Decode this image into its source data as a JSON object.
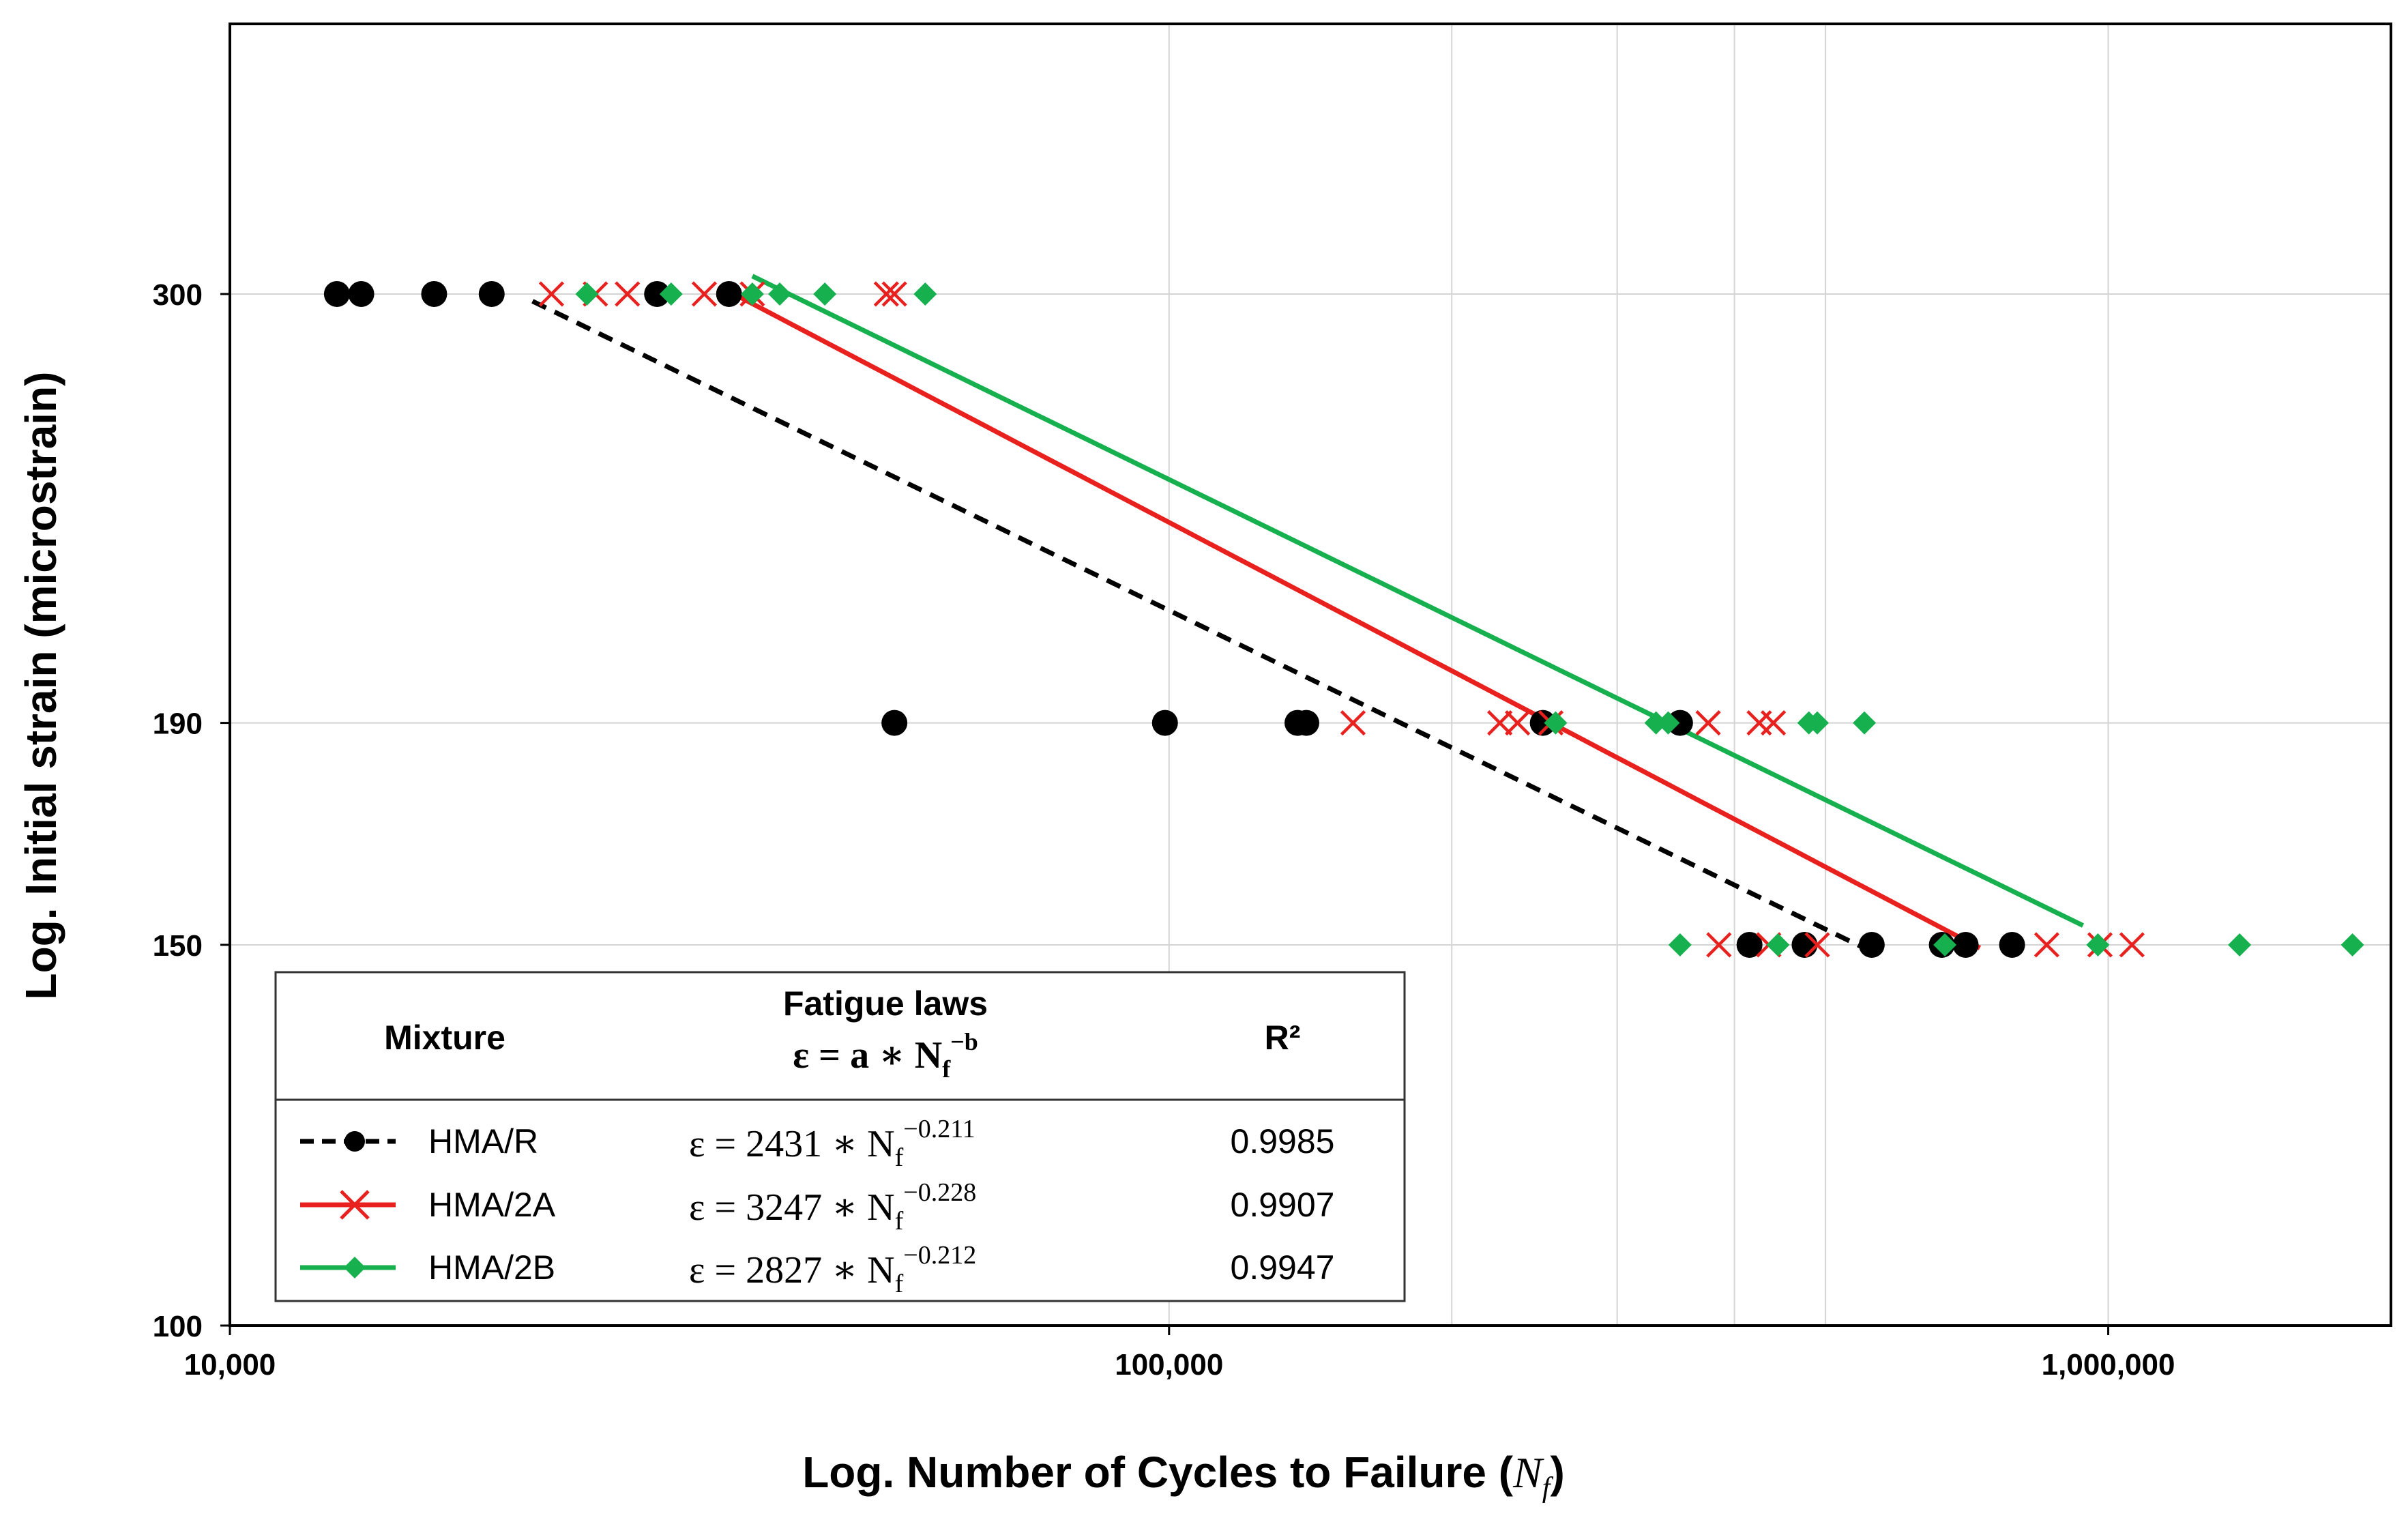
{
  "colors": {
    "hma_r": "#000000",
    "hma_2a": "#e8211e",
    "hma_2b": "#16b04e",
    "grid": "#d4d4d4",
    "axis": "#000000"
  },
  "chart_data": {
    "type": "scatter",
    "xscale": "log",
    "yscale": "log",
    "xlabel_text": "Log.  Number of Cycles to Failure (",
    "xlabel_symbol": "N",
    "xlabel_sub": "f",
    "xlabel_close": ")",
    "ylabel": "Log.  Initial strain (microstrain)",
    "xlim": [
      10000,
      2000000
    ],
    "ylim": [
      100,
      400
    ],
    "xticks": [
      10000,
      100000,
      1000000
    ],
    "xtick_labels": [
      "10,000",
      "100,000",
      "1,000,000"
    ],
    "yticks": [
      100,
      150,
      190,
      300
    ],
    "ytick_labels": [
      "100",
      "150",
      "190",
      "300"
    ],
    "x_minor_gridlines": [
      200000,
      300000,
      400000,
      500000,
      2000000
    ],
    "series": [
      {
        "name": "HMA/R",
        "marker": "circle",
        "line_style": "dashed",
        "fit": {
          "a": 2431,
          "b": 0.211,
          "r2": "0.9985",
          "x_range": [
            21000,
            560000
          ]
        },
        "points": [
          [
            13000,
            300
          ],
          [
            13800,
            300
          ],
          [
            16500,
            300
          ],
          [
            19000,
            300
          ],
          [
            28500,
            300
          ],
          [
            34000,
            300
          ],
          [
            51000,
            190
          ],
          [
            99000,
            190
          ],
          [
            137000,
            190
          ],
          [
            140000,
            190
          ],
          [
            250000,
            190
          ],
          [
            350000,
            190
          ],
          [
            415000,
            150
          ],
          [
            475000,
            150
          ],
          [
            560000,
            150
          ],
          [
            665000,
            150
          ],
          [
            705000,
            150
          ],
          [
            790000,
            150
          ]
        ]
      },
      {
        "name": "HMA/2A",
        "marker": "x",
        "line_style": "solid",
        "fit": {
          "a": 3247,
          "b": 0.228,
          "r2": "0.9907",
          "x_range": [
            35000,
            730000
          ]
        },
        "points": [
          [
            22000,
            300
          ],
          [
            24500,
            300
          ],
          [
            26500,
            300
          ],
          [
            32000,
            300
          ],
          [
            36000,
            300
          ],
          [
            50000,
            300
          ],
          [
            51000,
            300
          ],
          [
            157000,
            190
          ],
          [
            225000,
            190
          ],
          [
            235000,
            190
          ],
          [
            255000,
            190
          ],
          [
            375000,
            190
          ],
          [
            425000,
            190
          ],
          [
            440000,
            190
          ],
          [
            385000,
            150
          ],
          [
            435000,
            150
          ],
          [
            490000,
            150
          ],
          [
            860000,
            150
          ],
          [
            980000,
            150
          ],
          [
            1060000,
            150
          ]
        ]
      },
      {
        "name": "HMA/2B",
        "marker": "diamond",
        "line_style": "solid",
        "fit": {
          "a": 2827,
          "b": 0.212,
          "r2": "0.9947",
          "x_range": [
            36000,
            940000
          ]
        },
        "points": [
          [
            24000,
            300
          ],
          [
            29500,
            300
          ],
          [
            36000,
            300
          ],
          [
            38500,
            300
          ],
          [
            43000,
            300
          ],
          [
            55000,
            300
          ],
          [
            258000,
            190
          ],
          [
            330000,
            190
          ],
          [
            340000,
            190
          ],
          [
            480000,
            190
          ],
          [
            490000,
            190
          ],
          [
            550000,
            190
          ],
          [
            350000,
            150
          ],
          [
            445000,
            150
          ],
          [
            670000,
            150
          ],
          [
            975000,
            150
          ],
          [
            1380000,
            150
          ],
          [
            1820000,
            150
          ]
        ]
      }
    ],
    "legend": {
      "placement": "bottom-left",
      "header_mixture": "Mixture",
      "header_laws": "Fatigue laws",
      "header_law_formula": "ε = a ∗ N",
      "header_law_sub": "f",
      "header_law_sup": "−b",
      "header_r2": "R²",
      "rows": [
        {
          "name": "HMA/R",
          "eq": "ε = 2431 ∗ N",
          "sub": "f",
          "sup": "−0.211",
          "r2": "0.9985"
        },
        {
          "name": "HMA/2A",
          "eq": "ε = 3247 ∗ N",
          "sub": "f",
          "sup": "−0.228",
          "r2": "0.9907"
        },
        {
          "name": "HMA/2B",
          "eq": "ε = 2827 ∗ N",
          "sub": "f",
          "sup": "−0.212",
          "r2": "0.9947"
        }
      ]
    }
  }
}
